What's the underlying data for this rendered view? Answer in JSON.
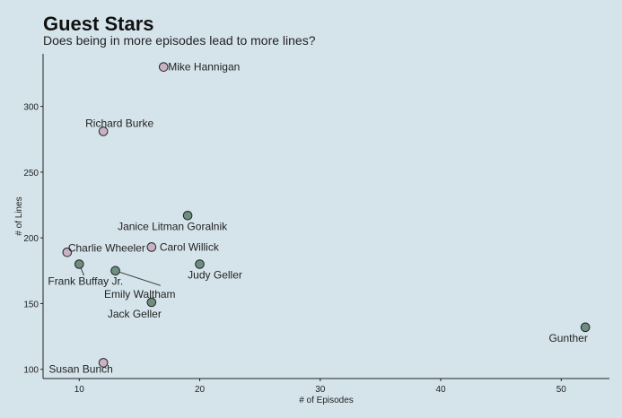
{
  "chart_data": {
    "type": "scatter",
    "title": "Guest Stars",
    "subtitle": "Does being in more episodes lead to more lines?",
    "xlabel": "# of Episodes",
    "ylabel": "# of Lines",
    "xlim": [
      7,
      54
    ],
    "ylim": [
      93,
      340
    ],
    "xticks": [
      10,
      20,
      30,
      40,
      50
    ],
    "yticks": [
      100,
      150,
      200,
      250,
      300
    ],
    "grid": false,
    "colors": {
      "pink": "#c8b2c4",
      "green": "#6e8e80",
      "background": "#d5e4eb"
    },
    "points": [
      {
        "label": "Mike Hannigan",
        "x": 17,
        "y": 330,
        "color": "pink"
      },
      {
        "label": "Richard Burke",
        "x": 12,
        "y": 281,
        "color": "pink"
      },
      {
        "label": "Janice Litman Goralnik",
        "x": 19,
        "y": 217,
        "color": "green"
      },
      {
        "label": "Carol Willick",
        "x": 16,
        "y": 193,
        "color": "pink"
      },
      {
        "label": "Charlie Wheeler",
        "x": 9,
        "y": 189,
        "color": "pink"
      },
      {
        "label": "Frank Buffay Jr.",
        "x": 10,
        "y": 180,
        "color": "green"
      },
      {
        "label": "Judy Geller",
        "x": 20,
        "y": 180,
        "color": "green"
      },
      {
        "label": "Emily Waltham",
        "x": 13,
        "y": 175,
        "color": "green"
      },
      {
        "label": "Jack Geller",
        "x": 16,
        "y": 151,
        "color": "green"
      },
      {
        "label": "Gunther",
        "x": 52,
        "y": 132,
        "color": "green"
      },
      {
        "label": "Susan Bunch",
        "x": 12,
        "y": 105,
        "color": "pink"
      }
    ]
  }
}
